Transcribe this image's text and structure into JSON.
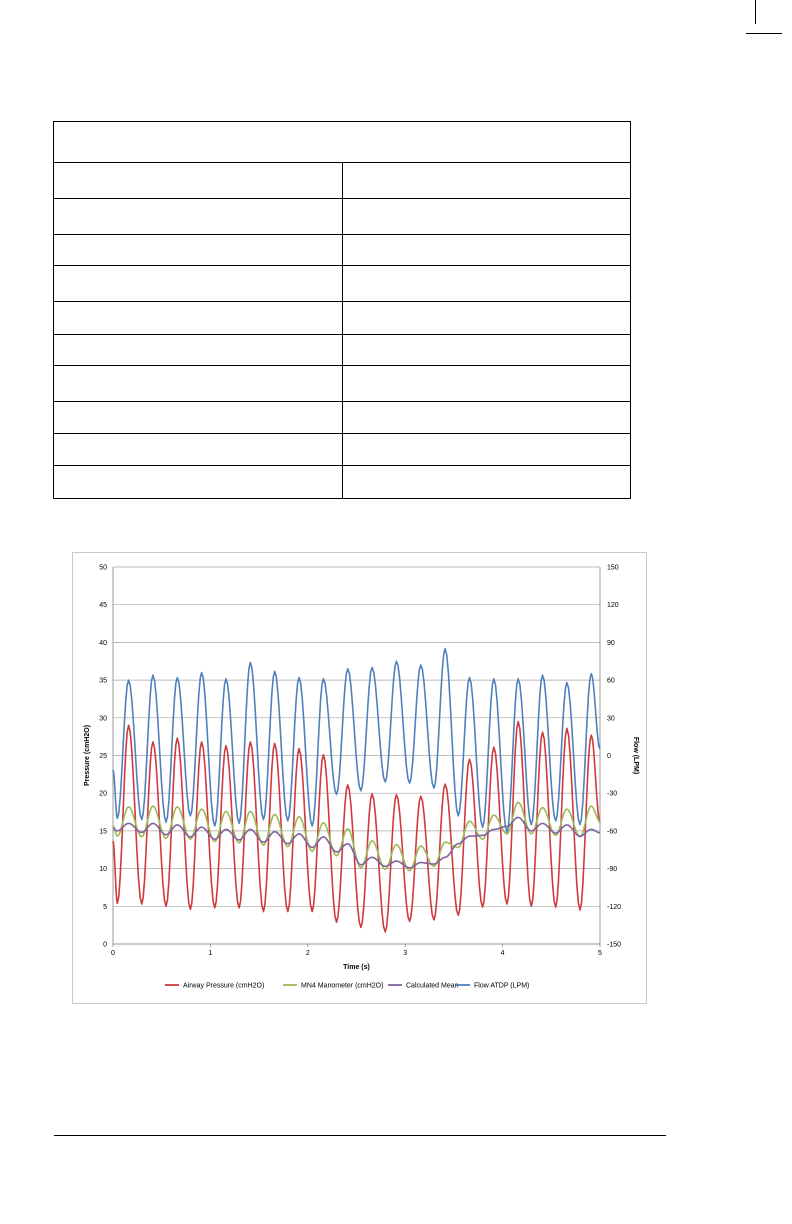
{
  "table": {
    "title": "",
    "rows": [
      [
        "",
        ""
      ],
      [
        "",
        ""
      ],
      [
        "",
        ""
      ],
      [
        "",
        ""
      ],
      [
        "",
        ""
      ],
      [
        "",
        ""
      ],
      [
        "",
        ""
      ],
      [
        "",
        ""
      ],
      [
        "",
        ""
      ],
      [
        "",
        ""
      ]
    ]
  },
  "chart_data": {
    "type": "line",
    "title": "",
    "xlabel": "Time (s)",
    "ylabel": "Pressure (cmH2O)",
    "y2label": "Flow (LPM)",
    "xlim": [
      0,
      5
    ],
    "ylim": [
      0,
      50
    ],
    "y2lim": [
      -150,
      150
    ],
    "xticks": [
      "0",
      "1",
      "2",
      "3",
      "4",
      "5"
    ],
    "yticks": [
      "0",
      "5",
      "10",
      "15",
      "20",
      "25",
      "30",
      "35",
      "40",
      "45",
      "50"
    ],
    "y2ticks": [
      "-150",
      "-120",
      "-90",
      "-60",
      "-30",
      "0",
      "30",
      "60",
      "90",
      "120",
      "150"
    ],
    "grid": true,
    "legend_position": "bottom",
    "cycle_peak_times": [
      0.16,
      0.41,
      0.66,
      0.91,
      1.16,
      1.41,
      1.66,
      1.91,
      2.16,
      2.41,
      2.66,
      2.91,
      3.16,
      3.41,
      3.66,
      3.91,
      4.16,
      4.41,
      4.66,
      4.91
    ],
    "series": [
      {
        "name": "Airway Pressure (cmH2O)",
        "axis": "left",
        "color": "#d0393e",
        "peaks": [
          29,
          26.8,
          27.3,
          26.8,
          26.3,
          26.8,
          26.6,
          25.9,
          25.1,
          21.1,
          19.9,
          19.8,
          19.6,
          21.2,
          24.5,
          26.1,
          29.5,
          28.1,
          28.6,
          27.7
        ],
        "troughs": [
          5.4,
          5.3,
          5.0,
          4.6,
          4.8,
          4.8,
          4.3,
          4.3,
          4.3,
          2.9,
          2.2,
          1.6,
          3.0,
          3.2,
          3.8,
          4.9,
          5.3,
          5.0,
          4.9,
          4.5
        ]
      },
      {
        "name": "MN4 Manometer (cmH2O)",
        "axis": "left",
        "color": "#9bbb59",
        "peaks": [
          18.2,
          18.3,
          18.2,
          17.9,
          17.6,
          17.6,
          17.2,
          16.9,
          16.1,
          15.3,
          13.7,
          13.2,
          13.0,
          13.5,
          16.3,
          17.1,
          18.8,
          18.1,
          17.9,
          18.3
        ],
        "troughs": [
          14.3,
          14.2,
          14.0,
          13.9,
          13.6,
          13.4,
          13.1,
          12.9,
          12.3,
          11.7,
          10.1,
          9.9,
          9.7,
          10.3,
          12.8,
          13.9,
          14.6,
          14.6,
          14.4,
          14.2
        ]
      },
      {
        "name": "Calculated Mean",
        "axis": "left",
        "color": "#8064a2",
        "peaks": [
          16.0,
          16.0,
          15.8,
          15.5,
          15.2,
          15.2,
          14.9,
          14.6,
          14.2,
          13.3,
          11.5,
          11.0,
          10.8,
          11.5,
          14.3,
          15.2,
          16.8,
          16.0,
          15.8,
          15.2
        ],
        "troughs": [
          15.0,
          14.8,
          14.5,
          14.2,
          13.9,
          13.8,
          13.5,
          13.3,
          12.8,
          12.2,
          10.5,
          10.3,
          10.1,
          10.6,
          13.3,
          14.4,
          15.6,
          15.0,
          14.7,
          14.3
        ]
      },
      {
        "name": "Flow ATDP (LPM)",
        "axis": "right",
        "color": "#4f81bd",
        "peaks": [
          60,
          64,
          62,
          66,
          61,
          74,
          67,
          62,
          61,
          69,
          70,
          75,
          72,
          85,
          62,
          61,
          61,
          64,
          58,
          65
        ],
        "troughs": [
          -50,
          -51,
          -53,
          -48,
          -56,
          -54,
          -51,
          -52,
          -56,
          -31,
          -28,
          -21,
          -22,
          -26,
          -48,
          -57,
          -61,
          -55,
          -52,
          -55
        ]
      }
    ]
  }
}
